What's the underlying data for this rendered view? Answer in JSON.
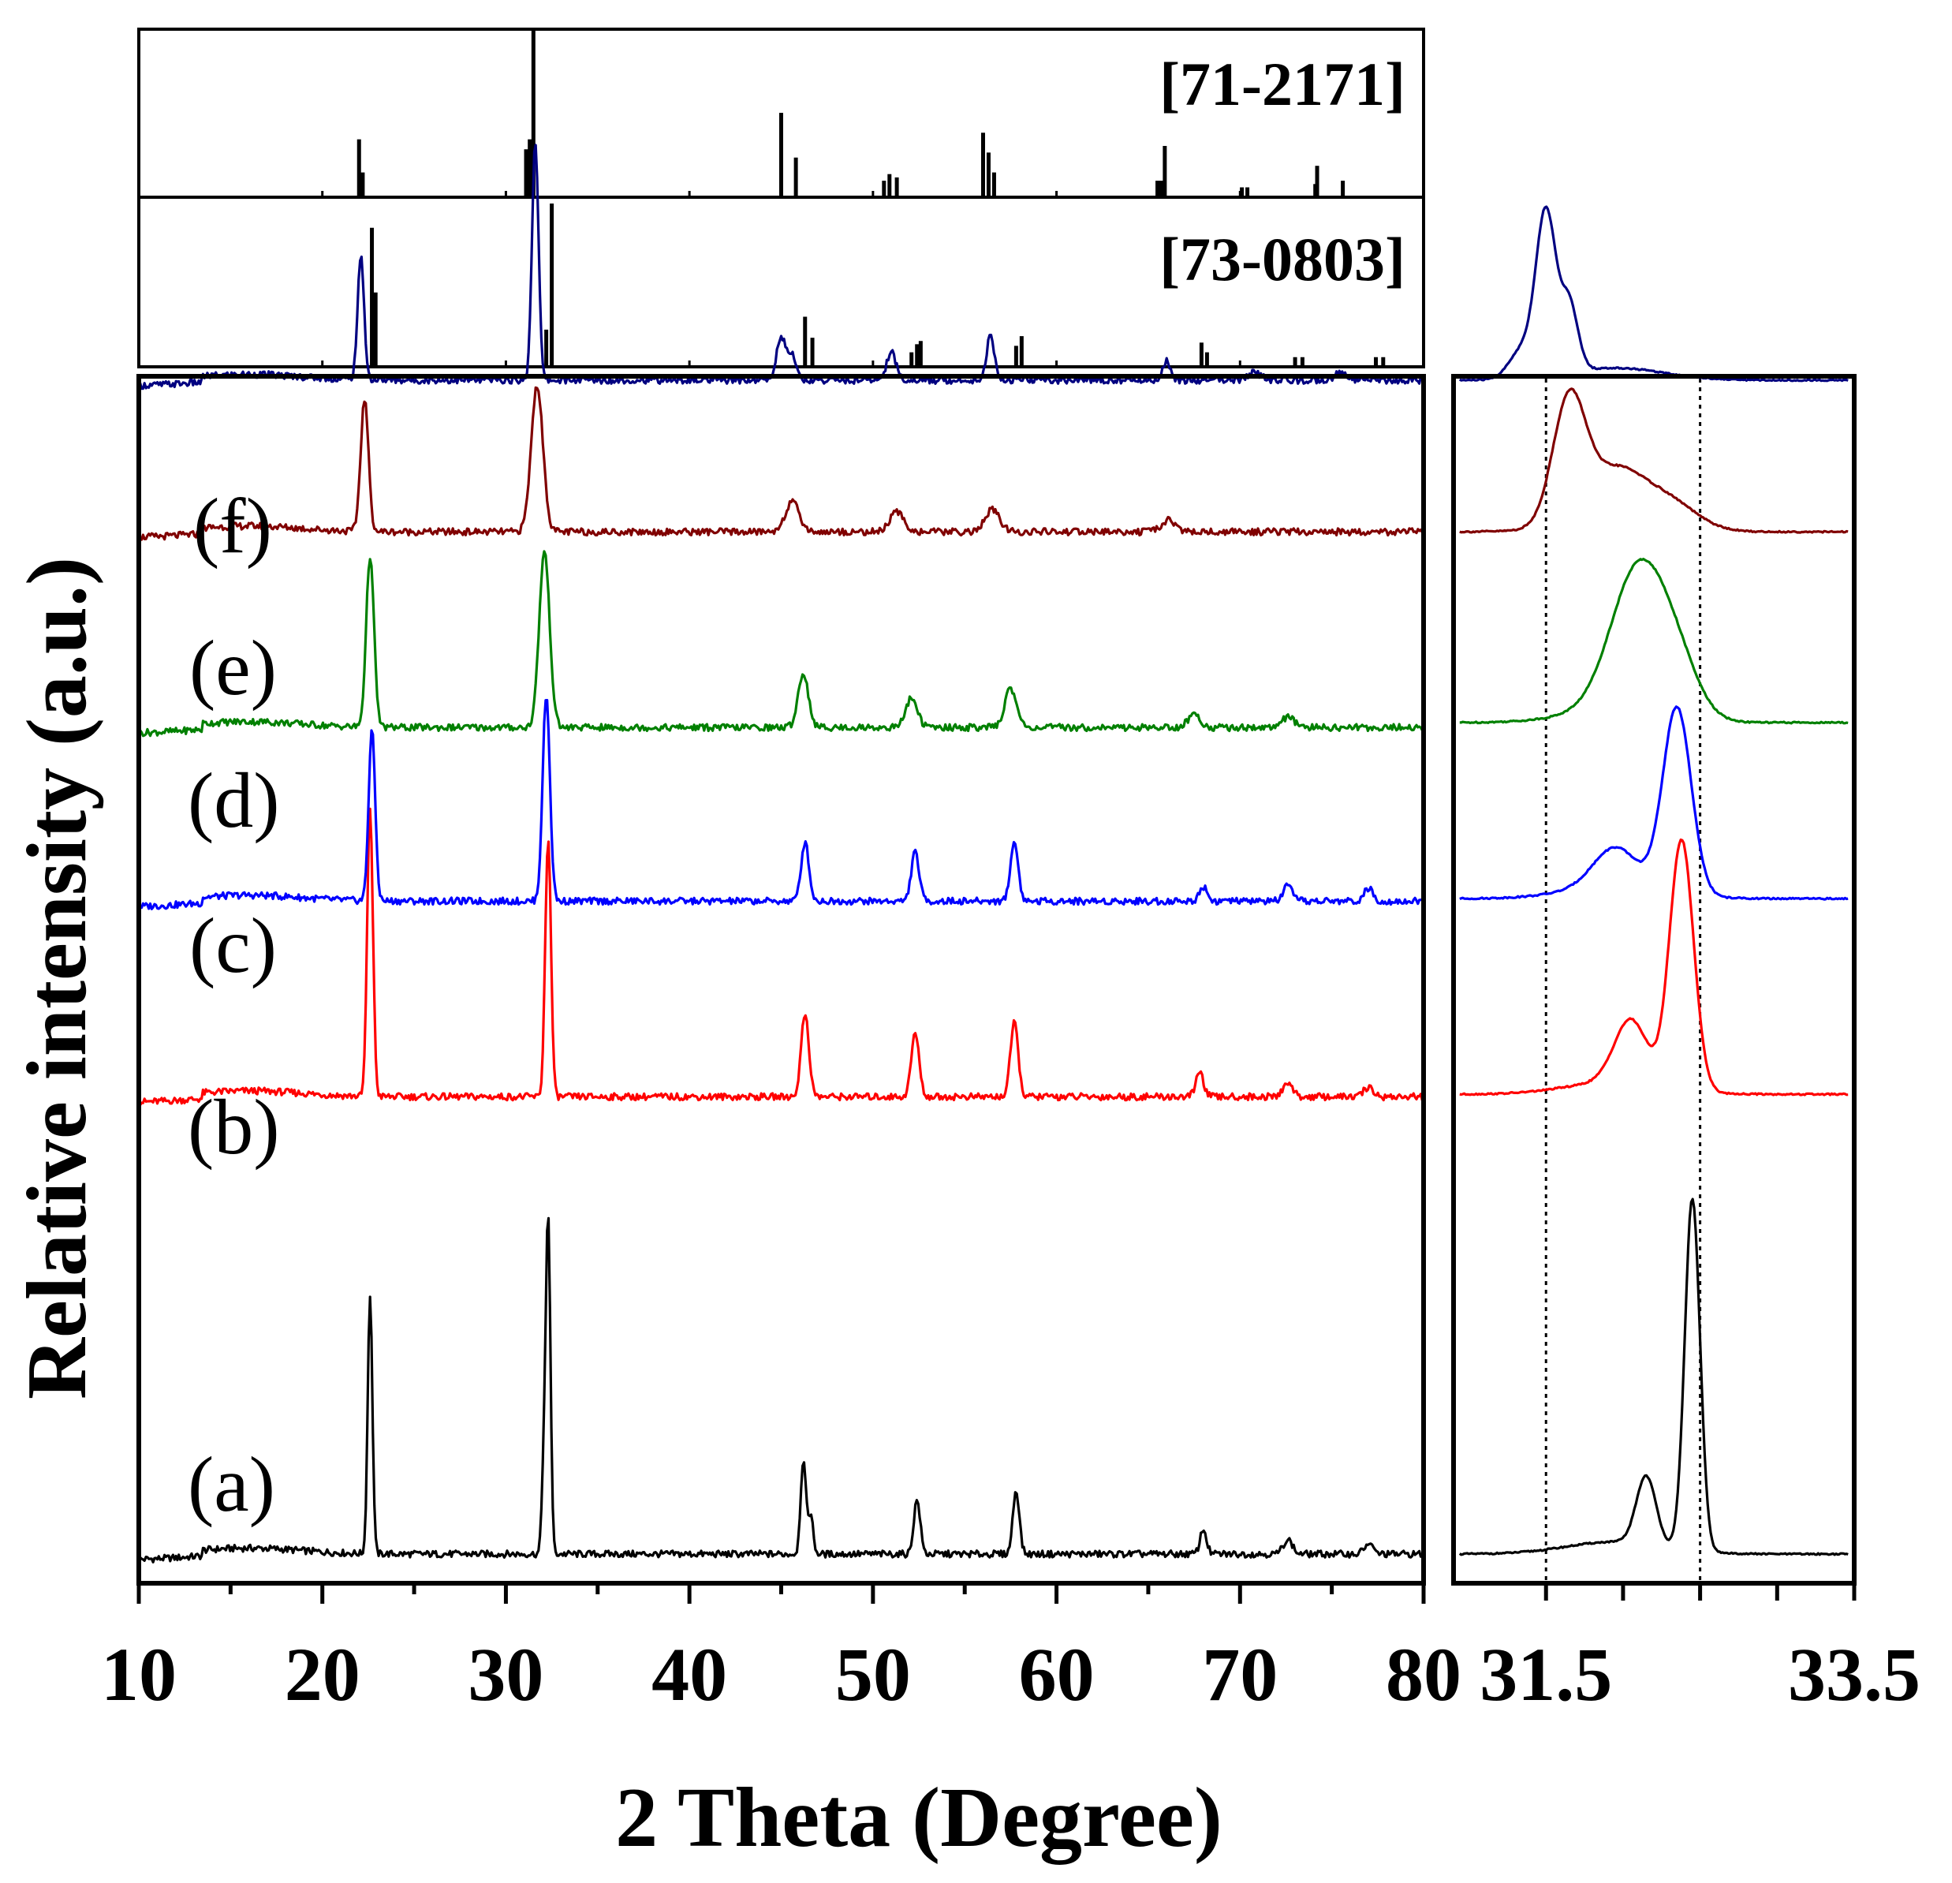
{
  "chart_data": [
    {
      "type": "bar",
      "name": "reference-pattern-71-2171",
      "label": "[71-2171]",
      "x_range": [
        10,
        80
      ],
      "sticks": [
        {
          "x": 22.0,
          "h": 0.34
        },
        {
          "x": 22.2,
          "h": 0.14
        },
        {
          "x": 31.1,
          "h": 0.28
        },
        {
          "x": 31.3,
          "h": 0.34
        },
        {
          "x": 31.5,
          "h": 1.0
        },
        {
          "x": 45.0,
          "h": 0.5
        },
        {
          "x": 45.8,
          "h": 0.23
        },
        {
          "x": 50.6,
          "h": 0.09
        },
        {
          "x": 50.9,
          "h": 0.13
        },
        {
          "x": 51.3,
          "h": 0.11
        },
        {
          "x": 56.0,
          "h": 0.38
        },
        {
          "x": 56.3,
          "h": 0.26
        },
        {
          "x": 56.6,
          "h": 0.14
        },
        {
          "x": 65.5,
          "h": 0.09
        },
        {
          "x": 65.7,
          "h": 0.09
        },
        {
          "x": 65.9,
          "h": 0.3
        },
        {
          "x": 70.1,
          "h": 0.05
        },
        {
          "x": 70.4,
          "h": 0.05
        },
        {
          "x": 74.2,
          "h": 0.18
        },
        {
          "x": 74.1,
          "h": 0.07
        },
        {
          "x": 75.6,
          "h": 0.09
        }
      ]
    },
    {
      "type": "bar",
      "name": "reference-pattern-73-0803",
      "label": "[73-0803]",
      "x_range": [
        10,
        80
      ],
      "sticks": [
        {
          "x": 22.7,
          "h": 0.85
        },
        {
          "x": 22.9,
          "h": 0.45
        },
        {
          "x": 32.2,
          "h": 0.22
        },
        {
          "x": 32.5,
          "h": 1.0
        },
        {
          "x": 46.3,
          "h": 0.3
        },
        {
          "x": 46.7,
          "h": 0.17
        },
        {
          "x": 52.1,
          "h": 0.08
        },
        {
          "x": 52.4,
          "h": 0.13
        },
        {
          "x": 52.6,
          "h": 0.15
        },
        {
          "x": 57.8,
          "h": 0.12
        },
        {
          "x": 58.1,
          "h": 0.18
        },
        {
          "x": 67.9,
          "h": 0.14
        },
        {
          "x": 68.2,
          "h": 0.08
        },
        {
          "x": 73.0,
          "h": 0.05
        },
        {
          "x": 73.4,
          "h": 0.05
        },
        {
          "x": 77.4,
          "h": 0.05
        },
        {
          "x": 77.8,
          "h": 0.05
        }
      ]
    },
    {
      "type": "line",
      "name": "xrd-patterns",
      "xlabel": "2 Theta (Degree)",
      "ylabel": "Relative intensity (a.u.)",
      "xlim": [
        10,
        80
      ],
      "xticks": [
        "10",
        "20",
        "30",
        "40",
        "50",
        "60",
        "70",
        "80"
      ],
      "series": [
        {
          "name": "(a)",
          "color": "#000000",
          "baseline": 0.0,
          "peaks": [
            [
              22.6,
              5.3,
              0.18
            ],
            [
              32.3,
              6.9,
              0.18
            ],
            [
              32.05,
              1.5,
              0.15
            ],
            [
              46.2,
              1.9,
              0.2
            ],
            [
              46.6,
              0.8,
              0.2
            ],
            [
              52.4,
              1.1,
              0.25
            ],
            [
              57.8,
              1.3,
              0.25
            ],
            [
              68.0,
              0.5,
              0.25
            ],
            [
              72.6,
              0.3,
              0.35
            ],
            [
              77.0,
              0.2,
              0.35
            ]
          ]
        },
        {
          "name": "(b)",
          "color": "#ff0000",
          "baseline": 9.35,
          "peaks": [
            [
              22.6,
              5.9,
              0.22
            ],
            [
              32.3,
              5.3,
              0.22
            ],
            [
              46.3,
              1.7,
              0.3
            ],
            [
              52.3,
              1.3,
              0.3
            ],
            [
              57.7,
              1.5,
              0.3
            ],
            [
              67.8,
              0.5,
              0.3
            ],
            [
              72.6,
              0.3,
              0.35
            ],
            [
              77.0,
              0.2,
              0.35
            ]
          ]
        },
        {
          "name": "(c)",
          "color": "#0000ff",
          "baseline": 13.35,
          "peaks": [
            [
              22.7,
              3.5,
              0.25
            ],
            [
              32.2,
              4.2,
              0.28
            ],
            [
              46.3,
              1.2,
              0.3
            ],
            [
              52.3,
              1.0,
              0.3
            ],
            [
              57.7,
              1.2,
              0.3
            ],
            [
              68.0,
              0.3,
              0.3
            ],
            [
              72.6,
              0.3,
              0.35
            ],
            [
              77.0,
              0.25,
              0.35
            ]
          ]
        },
        {
          "name": "(d)",
          "color": "#008000",
          "baseline": 16.9,
          "peaks": [
            [
              22.6,
              3.5,
              0.3
            ],
            [
              32.1,
              3.6,
              0.4
            ],
            [
              46.2,
              1.1,
              0.4
            ],
            [
              52.1,
              0.6,
              0.45
            ],
            [
              57.5,
              0.8,
              0.45
            ],
            [
              67.5,
              0.25,
              0.5
            ],
            [
              72.6,
              0.2,
              0.5
            ]
          ]
        },
        {
          "name": "(e)",
          "color": "#800000",
          "baseline": 20.9,
          "peaks": [
            [
              22.3,
              2.7,
              0.3
            ],
            [
              31.7,
              3.0,
              0.45
            ],
            [
              45.6,
              0.6,
              0.55
            ],
            [
              51.3,
              0.4,
              0.55
            ],
            [
              56.5,
              0.45,
              0.55
            ],
            [
              66.1,
              0.25,
              0.5
            ]
          ]
        },
        {
          "name": "(f)",
          "color": "#000080",
          "baseline": 24.0,
          "peaks": [
            [
              22.1,
              2.5,
              0.25
            ],
            [
              31.6,
              4.9,
              0.25
            ],
            [
              45.0,
              0.9,
              0.35
            ],
            [
              45.6,
              0.5,
              0.3
            ],
            [
              51.0,
              0.6,
              0.35
            ],
            [
              56.4,
              0.9,
              0.3
            ],
            [
              66.0,
              0.4,
              0.3
            ],
            [
              70.8,
              0.15,
              0.5
            ],
            [
              75.5,
              0.15,
              0.5
            ]
          ]
        }
      ]
    },
    {
      "type": "line",
      "name": "xrd-zoom-inset",
      "xlim": [
        30.9,
        33.5
      ],
      "xticks": [
        "31.5",
        "33.5"
      ],
      "reference_lines": [
        31.5,
        32.5
      ],
      "series": [
        {
          "name": "(a)",
          "color": "#000000",
          "baseline": 0.0,
          "peaks": [
            [
              32.45,
              7.2,
              0.07
            ],
            [
              32.15,
              1.4,
              0.09
            ]
          ]
        },
        {
          "name": "(b)",
          "color": "#ff0000",
          "baseline": 9.4,
          "peaks": [
            [
              32.38,
              5.1,
              0.11
            ],
            [
              32.05,
              1.3,
              0.15
            ]
          ]
        },
        {
          "name": "(c)",
          "color": "#0000ff",
          "baseline": 13.4,
          "peaks": [
            [
              32.35,
              3.8,
              0.13
            ],
            [
              31.95,
              0.8,
              0.2
            ]
          ]
        },
        {
          "name": "(d)",
          "color": "#008000",
          "baseline": 17.0,
          "peaks": [
            [
              32.1,
              2.9,
              0.25
            ],
            [
              32.35,
              0.9,
              0.2
            ]
          ]
        },
        {
          "name": "(e)",
          "color": "#800000",
          "baseline": 20.9,
          "peaks": [
            [
              31.65,
              2.5,
              0.15
            ],
            [
              31.95,
              1.0,
              0.25
            ],
            [
              32.3,
              0.5,
              0.25
            ]
          ]
        },
        {
          "name": "(f)",
          "color": "#000080",
          "baseline": 24.0,
          "peaks": [
            [
              31.5,
              3.3,
              0.09
            ],
            [
              31.65,
              1.4,
              0.08
            ],
            [
              31.35,
              0.6,
              0.12
            ]
          ]
        }
      ]
    }
  ]
}
